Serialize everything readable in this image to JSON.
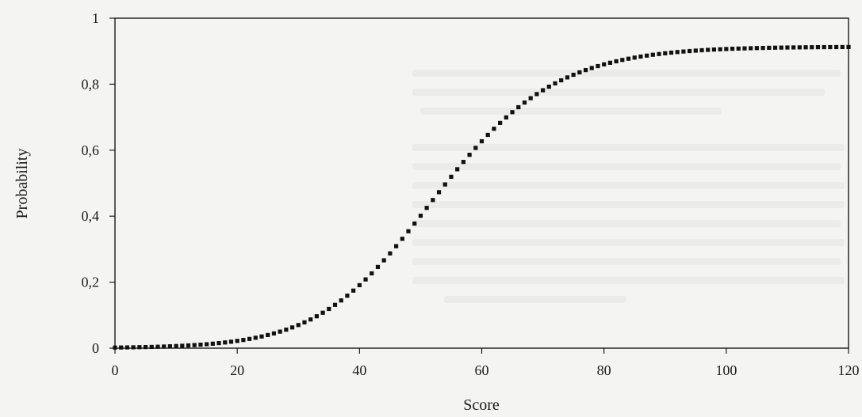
{
  "chart_data": {
    "type": "scatter",
    "title": "",
    "xlabel": "Score",
    "ylabel": "Probability",
    "xlim": [
      0,
      120
    ],
    "ylim": [
      0,
      1
    ],
    "x_ticks": [
      {
        "value": 0,
        "label": "0"
      },
      {
        "value": 20,
        "label": "20"
      },
      {
        "value": 40,
        "label": "40"
      },
      {
        "value": 60,
        "label": "60"
      },
      {
        "value": 80,
        "label": "80"
      },
      {
        "value": 100,
        "label": "100"
      },
      {
        "value": 120,
        "label": "120"
      }
    ],
    "y_ticks": [
      {
        "value": 0,
        "label": "0"
      },
      {
        "value": 0.2,
        "label": "0,2"
      },
      {
        "value": 0.4,
        "label": "0,4"
      },
      {
        "value": 0.6,
        "label": "0,6"
      },
      {
        "value": 0.8,
        "label": "0,8"
      },
      {
        "value": 1,
        "label": "1"
      }
    ],
    "grid": false,
    "series": [
      {
        "marker": "square",
        "color": "#111111",
        "x": [
          0,
          1,
          2,
          3,
          4,
          5,
          6,
          7,
          8,
          9,
          10,
          11,
          12,
          13,
          14,
          15,
          16,
          17,
          18,
          19,
          20,
          21,
          22,
          23,
          24,
          25,
          26,
          27,
          28,
          29,
          30,
          31,
          32,
          33,
          34,
          35,
          36,
          37,
          38,
          39,
          40,
          41,
          42,
          43,
          44,
          45,
          46,
          47,
          48,
          49,
          50,
          51,
          52,
          53,
          54,
          55,
          56,
          57,
          58,
          59,
          60,
          61,
          62,
          63,
          64,
          65,
          66,
          67,
          68,
          69,
          70,
          71,
          72,
          73,
          74,
          75,
          76,
          77,
          78,
          79,
          80,
          81,
          82,
          83,
          84,
          85,
          86,
          87,
          88,
          89,
          90,
          91,
          92,
          93,
          94,
          95,
          96,
          97,
          98,
          99,
          100,
          101,
          102,
          103,
          104,
          105,
          106,
          107,
          108,
          109,
          110,
          111,
          112,
          113,
          114,
          115,
          116,
          117,
          118,
          119,
          120
        ],
        "y": [
          0.0018,
          0.002,
          0.0023,
          0.0026,
          0.003,
          0.0034,
          0.0038,
          0.0043,
          0.0049,
          0.0056,
          0.0064,
          0.0072,
          0.0082,
          0.0093,
          0.0105,
          0.0119,
          0.0135,
          0.0153,
          0.0173,
          0.0195,
          0.022,
          0.0248,
          0.028,
          0.0315,
          0.0354,
          0.0398,
          0.0447,
          0.0501,
          0.0561,
          0.0628,
          0.0701,
          0.0782,
          0.087,
          0.0967,
          0.1073,
          0.1188,
          0.1312,
          0.1446,
          0.159,
          0.1744,
          0.1909,
          0.2083,
          0.2267,
          0.246,
          0.2662,
          0.2872,
          0.309,
          0.3314,
          0.3543,
          0.3776,
          0.4013,
          0.4251,
          0.4489,
          0.4727,
          0.4962,
          0.5194,
          0.5422,
          0.5644,
          0.586,
          0.6069,
          0.627,
          0.6464,
          0.6649,
          0.6825,
          0.6993,
          0.7152,
          0.7302,
          0.7443,
          0.7576,
          0.77,
          0.7816,
          0.7924,
          0.8025,
          0.8118,
          0.8205,
          0.8285,
          0.8359,
          0.8427,
          0.849,
          0.8548,
          0.8601,
          0.8649,
          0.8694,
          0.8735,
          0.8772,
          0.8806,
          0.8837,
          0.8866,
          0.8892,
          0.8915,
          0.8937,
          0.8956,
          0.8974,
          0.899,
          0.9004,
          0.9017,
          0.9029,
          0.904,
          0.905,
          0.9058,
          0.9066,
          0.9073,
          0.9079,
          0.9085,
          0.909,
          0.9095,
          0.9099,
          0.9103,
          0.9106,
          0.9109,
          0.9112,
          0.9114,
          0.9116,
          0.9118,
          0.912,
          0.9122,
          0.9123,
          0.9124,
          0.9125,
          0.9126,
          0.9127
        ]
      }
    ]
  }
}
